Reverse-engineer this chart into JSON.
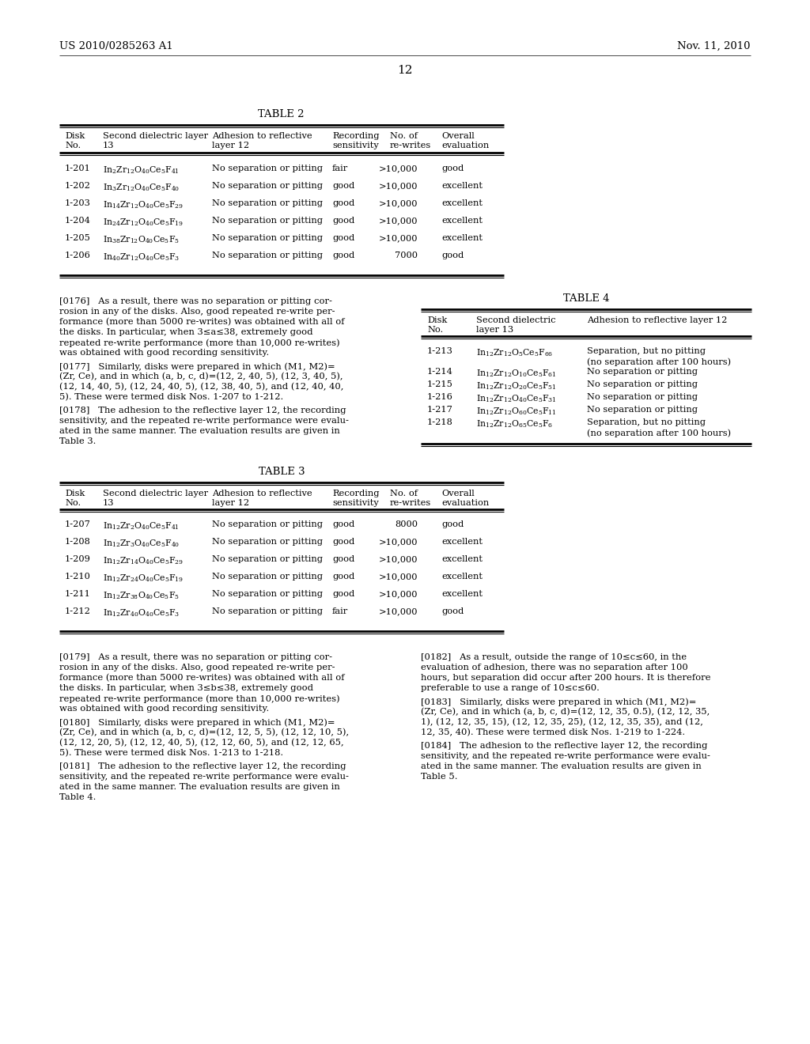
{
  "header_left": "US 2010/0285263 A1",
  "header_right": "Nov. 11, 2010",
  "page_num": "12",
  "background": "#ffffff",
  "table2_title": "TABLE 2",
  "table2_rows": [
    [
      "1-201",
      "$\\mathregular{In_2Zr_{12}O_{40}Ce_5F_{41}}$",
      "No separation or pitting",
      "fair",
      ">10,000",
      "good"
    ],
    [
      "1-202",
      "$\\mathregular{In_3Zr_{12}O_{40}Ce_5F_{40}}$",
      "No separation or pitting",
      "good",
      ">10,000",
      "excellent"
    ],
    [
      "1-203",
      "$\\mathregular{In_{14}Zr_{12}O_{40}Ce_5F_{29}}$",
      "No separation or pitting",
      "good",
      ">10,000",
      "excellent"
    ],
    [
      "1-204",
      "$\\mathregular{In_{24}Zr_{12}O_{40}Ce_5F_{19}}$",
      "No separation or pitting",
      "good",
      ">10,000",
      "excellent"
    ],
    [
      "1-205",
      "$\\mathregular{In_{38}Zr_{12}O_{40}Ce_5F_5}$",
      "No separation or pitting",
      "good",
      ">10,000",
      "excellent"
    ],
    [
      "1-206",
      "$\\mathregular{In_{40}Zr_{12}O_{40}Ce_5F_3}$",
      "No separation or pitting",
      "good",
      "7000",
      "good"
    ]
  ],
  "para176_lines": [
    "[0176]   As a result, there was no separation or pitting cor-",
    "rosion in any of the disks. Also, good repeated re-write per-",
    "formance (more than 5000 re-writes) was obtained with all of",
    "the disks. In particular, when 3≤a≤38, extremely good",
    "repeated re-write performance (more than 10,000 re-writes)",
    "was obtained with good recording sensitivity."
  ],
  "para177_lines": [
    "[0177]   Similarly, disks were prepared in which (M1, M2)=",
    "(Zr, Ce), and in which (a, b, c, d)=(12, 2, 40, 5), (12, 3, 40, 5),",
    "(12, 14, 40, 5), (12, 24, 40, 5), (12, 38, 40, 5), and (12, 40, 40,",
    "5). These were termed disk Nos. 1-207 to 1-212."
  ],
  "para178_lines": [
    "[0178]   The adhesion to the reflective layer 12, the recording",
    "sensitivity, and the repeated re-write performance were evalu-",
    "ated in the same manner. The evaluation results are given in",
    "Table 3."
  ],
  "table4_title": "TABLE 4",
  "table4_rows": [
    [
      "1-213",
      "$\\mathregular{In_{12}Zr_{12}O_5Ce_5F_{66}}$",
      "Separation, but no pitting",
      "(no separation after 100 hours)"
    ],
    [
      "1-214",
      "$\\mathregular{In_{12}Zr_{12}O_{10}Ce_5F_{61}}$",
      "No separation or pitting",
      ""
    ],
    [
      "1-215",
      "$\\mathregular{In_{12}Zr_{12}O_{20}Ce_5F_{51}}$",
      "No separation or pitting",
      ""
    ],
    [
      "1-216",
      "$\\mathregular{In_{12}Zr_{12}O_{40}Ce_5F_{31}}$",
      "No separation or pitting",
      ""
    ],
    [
      "1-217",
      "$\\mathregular{In_{12}Zr_{12}O_{60}Ce_5F_{11}}$",
      "No separation or pitting",
      ""
    ],
    [
      "1-218",
      "$\\mathregular{In_{12}Zr_{12}O_{65}Ce_5F_6}$",
      "Separation, but no pitting",
      "(no separation after 100 hours)"
    ]
  ],
  "table3_title": "TABLE 3",
  "table3_rows": [
    [
      "1-207",
      "$\\mathregular{In_{12}Zr_2O_{40}Ce_5F_{41}}$",
      "No separation or pitting",
      "good",
      "8000",
      "good"
    ],
    [
      "1-208",
      "$\\mathregular{In_{12}Zr_3O_{40}Ce_5F_{40}}$",
      "No separation or pitting",
      "good",
      ">10,000",
      "excellent"
    ],
    [
      "1-209",
      "$\\mathregular{In_{12}Zr_{14}O_{40}Ce_5F_{29}}$",
      "No separation or pitting",
      "good",
      ">10,000",
      "excellent"
    ],
    [
      "1-210",
      "$\\mathregular{In_{12}Zr_{24}O_{40}Ce_5F_{19}}$",
      "No separation or pitting",
      "good",
      ">10,000",
      "excellent"
    ],
    [
      "1-211",
      "$\\mathregular{In_{12}Zr_{38}O_{40}Ce_5F_5}$",
      "No separation or pitting",
      "good",
      ">10,000",
      "excellent"
    ],
    [
      "1-212",
      "$\\mathregular{In_{12}Zr_{40}O_{40}Ce_5F_3}$",
      "No separation or pitting",
      "fair",
      ">10,000",
      "good"
    ]
  ],
  "para179_lines": [
    "[0179]   As a result, there was no separation or pitting cor-",
    "rosion in any of the disks. Also, good repeated re-write per-",
    "formance (more than 5000 re-writes) was obtained with all of",
    "the disks. In particular, when 3≤b≤38, extremely good",
    "repeated re-write performance (more than 10,000 re-writes)",
    "was obtained with good recording sensitivity."
  ],
  "para180_lines": [
    "[0180]   Similarly, disks were prepared in which (M1, M2)=",
    "(Zr, Ce), and in which (a, b, c, d)=(12, 12, 5, 5), (12, 12, 10, 5),",
    "(12, 12, 20, 5), (12, 12, 40, 5), (12, 12, 60, 5), and (12, 12, 65,",
    "5). These were termed disk Nos. 1-213 to 1-218."
  ],
  "para181_lines": [
    "[0181]   The adhesion to the reflective layer 12, the recording",
    "sensitivity, and the repeated re-write performance were evalu-",
    "ated in the same manner. The evaluation results are given in",
    "Table 4."
  ],
  "para182_lines": [
    "[0182]   As a result, outside the range of 10≤c≤60, in the",
    "evaluation of adhesion, there was no separation after 100",
    "hours, but separation did occur after 200 hours. It is therefore",
    "preferable to use a range of 10≤c≤60."
  ],
  "para183_lines": [
    "[0183]   Similarly, disks were prepared in which (M1, M2)=",
    "(Zr, Ce), and in which (a, b, c, d)=(12, 12, 35, 0.5), (12, 12, 35,",
    "1), (12, 12, 35, 15), (12, 12, 35, 25), (12, 12, 35, 35), and (12,",
    "12, 35, 40). These were termed disk Nos. 1-219 to 1-224."
  ],
  "para184_lines": [
    "[0184]   The adhesion to the reflective layer 12, the recording",
    "sensitivity, and the repeated re-write performance were evalu-",
    "ated in the same manner. The evaluation results are given in",
    "Table 5."
  ]
}
